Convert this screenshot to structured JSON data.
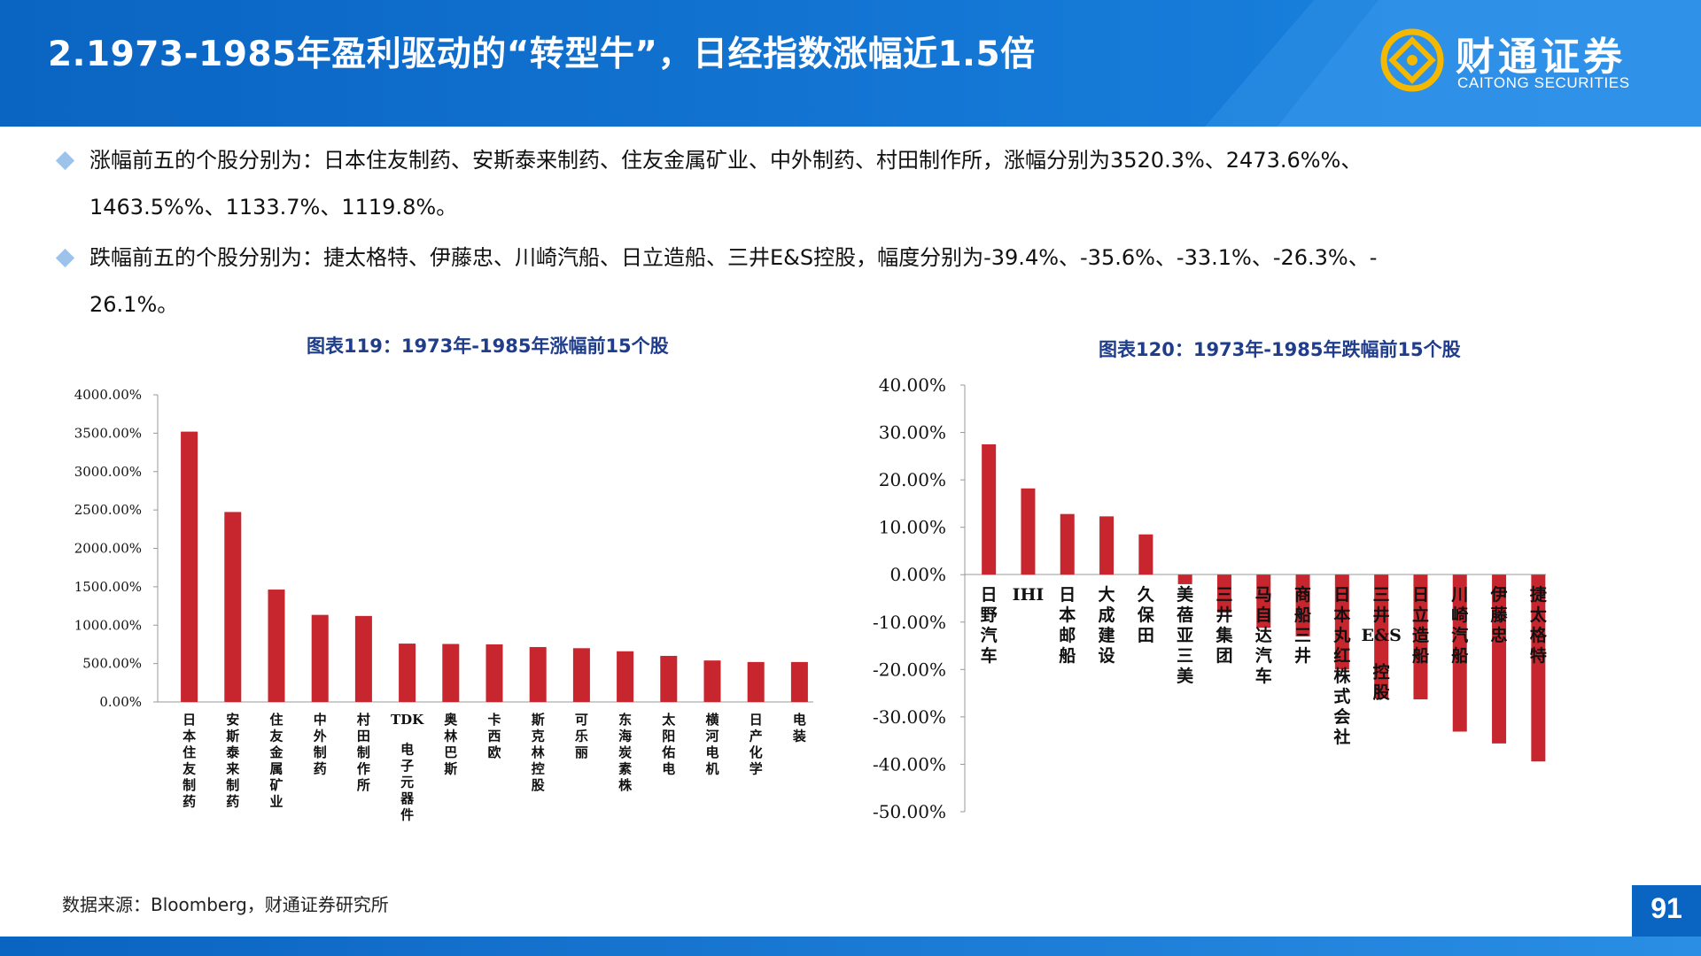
{
  "header": {
    "title": "2.1973-1985年盈利驱动的“转型牛”，日经指数涨幅近1.5倍",
    "logo_cn": "财通证券",
    "logo_en": "CAITONG SECURITIES",
    "logo_icon": "caitong-logo-icon"
  },
  "bullets": [
    {
      "line1": "涨幅前五的个股分别为：日本住友制药、安斯泰来制药、住友金属矿业、中外制药、村田制作所，涨幅分别为3520.3%、2473.6%%、",
      "line2": "1463.5%%、1133.7%、1119.8%。"
    },
    {
      "line1": "跌幅前五的个股分别为：捷太格特、伊藤忠、川崎汽船、日立造船、三井E&S控股，幅度分别为-39.4%、-35.6%、-33.1%、-26.3%、-",
      "line2": "26.1%。"
    }
  ],
  "chart_titles": {
    "left": "图表119：1973年-1985年涨幅前15个股",
    "right": "图表120：1973年-1985年跌幅前15个股"
  },
  "chart_data": [
    {
      "type": "bar",
      "title": "图表119：1973年-1985年涨幅前15个股",
      "categories": [
        "日本住友制药",
        "安斯泰来制药",
        "住友金属矿业",
        "中外制药",
        "村田制作所",
        "TDK电子元器件",
        "奥林巴斯",
        "卡西欧",
        "斯克林控股",
        "可乐丽",
        "东海炭素株",
        "太阳佑电",
        "横河电机",
        "日产化学",
        "电装"
      ],
      "values": [
        3520.3,
        2473.6,
        1463.5,
        1133.7,
        1119.8,
        760,
        755,
        750,
        715,
        700,
        660,
        600,
        540,
        520,
        520
      ],
      "ylim": [
        0,
        4000
      ],
      "yticks": [
        "0.00%",
        "500.00%",
        "1000.00%",
        "1500.00%",
        "2000.00%",
        "2500.00%",
        "3000.00%",
        "3500.00%",
        "4000.00%"
      ],
      "color": "#c8262e",
      "grid": false
    },
    {
      "type": "bar",
      "title": "图表120：1973年-1985年跌幅前15个股",
      "categories": [
        "日野汽车",
        "IHI",
        "日本邮船",
        "大成建设",
        "久保田",
        "美蓓亚三美",
        "三井集团",
        "马自达汽车",
        "商船三井",
        "日本丸红株式会社",
        "三井E&S控股",
        "日立造船",
        "川崎汽船",
        "伊藤忠",
        "捷太格特"
      ],
      "values": [
        27.5,
        18.2,
        12.8,
        12.3,
        8.5,
        -2.0,
        -8.0,
        -11.2,
        -13.0,
        -20.0,
        -26.1,
        -26.3,
        -33.1,
        -35.6,
        -39.4
      ],
      "ylim": [
        -50,
        40
      ],
      "yticks": [
        "-50.00%",
        "-40.00%",
        "-30.00%",
        "-20.00%",
        "-10.00%",
        "0.00%",
        "10.00%",
        "20.00%",
        "30.00%",
        "40.00%"
      ],
      "color": "#c8262e",
      "grid": false
    }
  ],
  "footer": {
    "source": "数据来源：Bloomberg，财通证券研究所",
    "page_number": "91"
  }
}
